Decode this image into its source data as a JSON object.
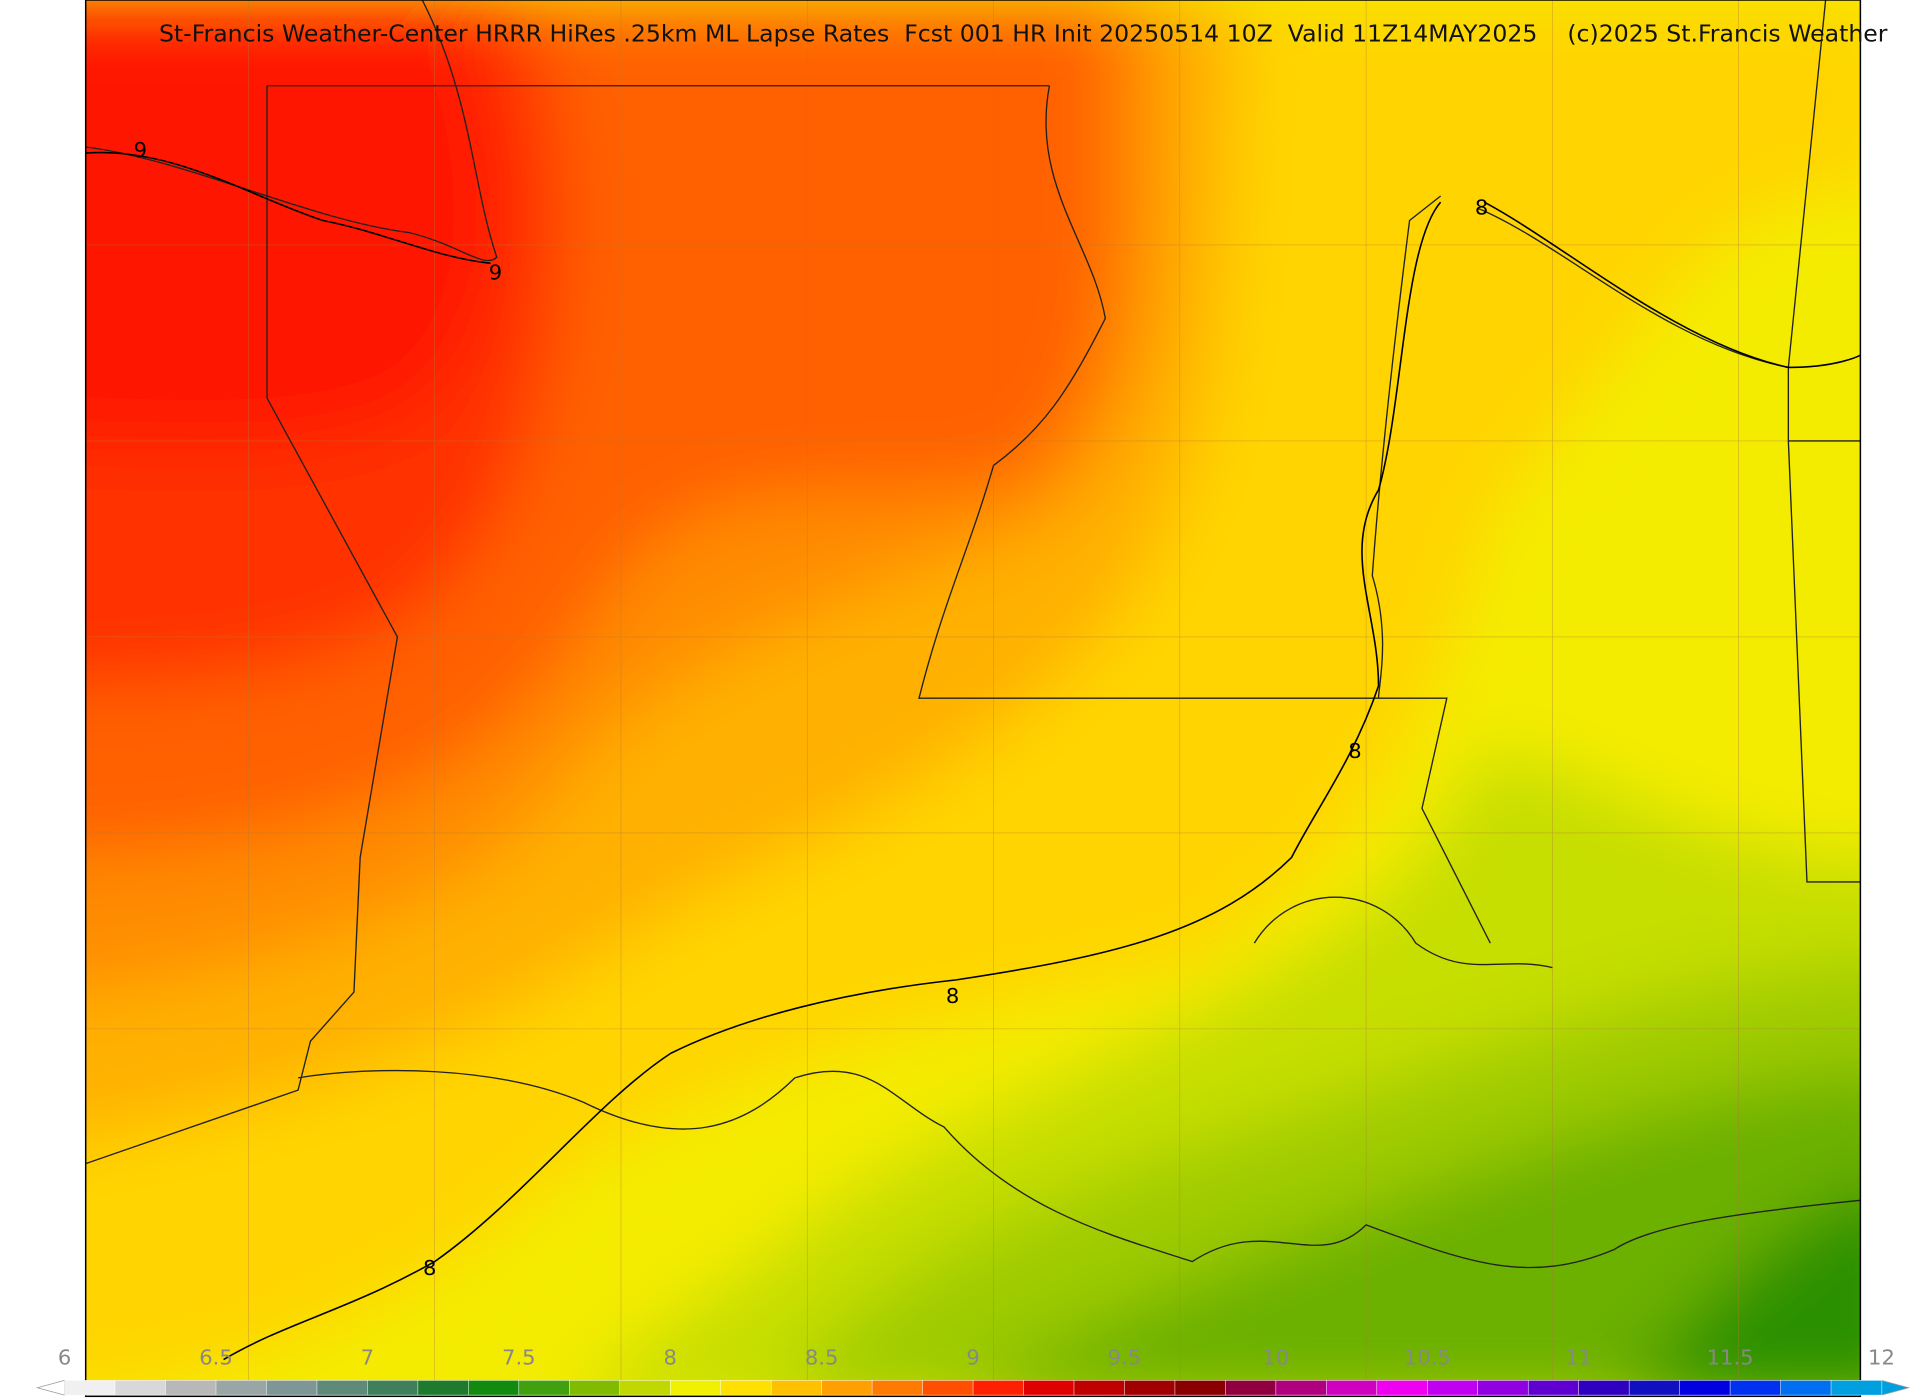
{
  "header": {
    "title": "St-Francis Weather-Center HRRR HiRes .25km ML Lapse Rates  Fcst 001 HR Init 20250514 10Z  Valid 11Z14MAY2025    (c)2025 St.Francis Weather"
  },
  "contour_labels": [
    "9",
    "9",
    "8",
    "8",
    "8",
    "8"
  ],
  "colorbar": {
    "ticks": [
      6,
      6.5,
      7,
      7.5,
      8,
      8.5,
      9,
      9.5,
      10,
      10.5,
      11,
      11.5,
      12
    ],
    "colors": [
      "#f0f0f0",
      "#d8d8d8",
      "#b8b8b8",
      "#9aa6a6",
      "#7e9696",
      "#5f8a7a",
      "#3f7f5a",
      "#1f7a2e",
      "#128a10",
      "#40a010",
      "#80bb00",
      "#c0d800",
      "#f0f000",
      "#ffe000",
      "#ffc000",
      "#ffa000",
      "#ff7a00",
      "#ff5000",
      "#ff2000",
      "#e00000",
      "#c00000",
      "#a00000",
      "#8a0000",
      "#900040",
      "#b00080",
      "#d000c0",
      "#f000f0",
      "#c000f0",
      "#9000e0",
      "#6000d0",
      "#3000c0",
      "#1010c0",
      "#0000e0",
      "#0030f0",
      "#0070f0",
      "#00a0e0"
    ]
  }
}
